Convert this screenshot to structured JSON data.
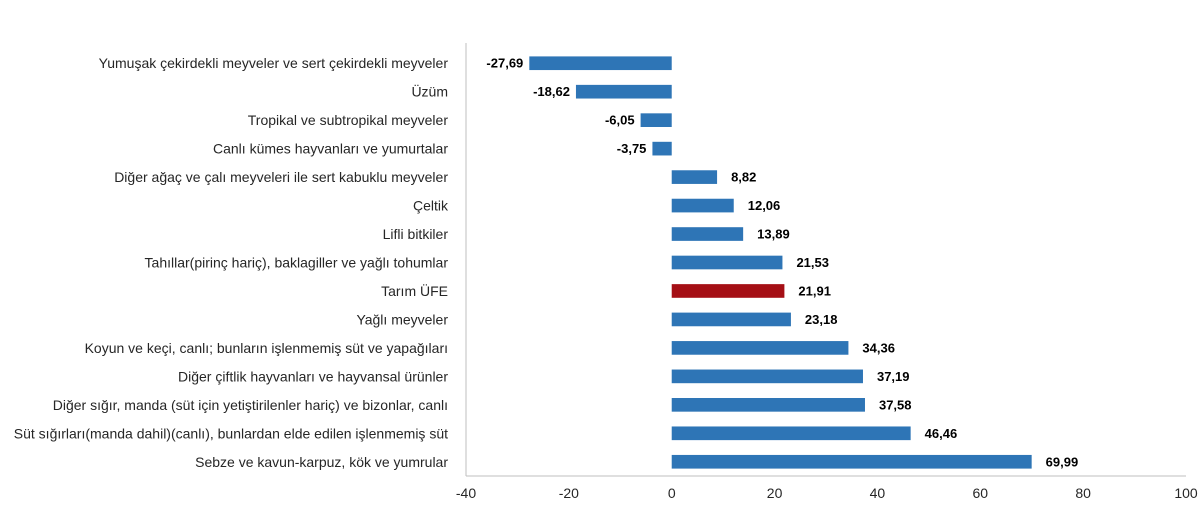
{
  "chart_data": {
    "type": "bar",
    "orientation": "horizontal",
    "categories": [
      "Yumuşak çekirdekli meyveler ve sert çekirdekli meyveler",
      "Üzüm",
      "Tropikal ve subtropikal meyveler",
      "Canlı kümes hayvanları ve yumurtalar",
      "Diğer ağaç ve çalı meyveleri ile sert kabuklu meyveler",
      "Çeltik",
      "Lifli bitkiler",
      "Tahıllar(pirinç hariç), baklagiller ve yağlı tohumlar",
      "Tarım ÜFE",
      "Yağlı meyveler",
      "Koyun ve keçi, canlı; bunların işlenmemiş süt ve yapağıları",
      "Diğer çiftlik hayvanları ve hayvansal ürünler",
      "Diğer sığır, manda (süt için yetiştirilenler hariç) ve bizonlar, canlı",
      "Süt sığırları(manda dahil)(canlı), bunlardan elde edilen işlenmemiş süt",
      "Sebze ve kavun-karpuz, kök ve yumrular"
    ],
    "values": [
      -27.69,
      -18.62,
      -6.05,
      -3.75,
      8.82,
      12.06,
      13.89,
      21.53,
      21.91,
      23.18,
      34.36,
      37.19,
      37.58,
      46.46,
      69.99
    ],
    "value_labels": [
      "-27,69",
      "-18,62",
      "-6,05",
      "-3,75",
      "8,82",
      "12,06",
      "13,89",
      "21,53",
      "21,91",
      "23,18",
      "34,36",
      "37,19",
      "37,58",
      "46,46",
      "69,99"
    ],
    "highlight_index": 8,
    "xlim": [
      -40,
      100
    ],
    "xticks": [
      -40,
      -20,
      0,
      20,
      40,
      60,
      80,
      100
    ],
    "xtick_labels": [
      "-40",
      "-20",
      "0",
      "20",
      "40",
      "60",
      "80",
      "100"
    ],
    "title": "",
    "xlabel": "",
    "ylabel": "",
    "grid": false,
    "colors": {
      "bar": "#2E75B6",
      "highlight": "#A50F15",
      "axis": "#BFBFBF"
    }
  }
}
